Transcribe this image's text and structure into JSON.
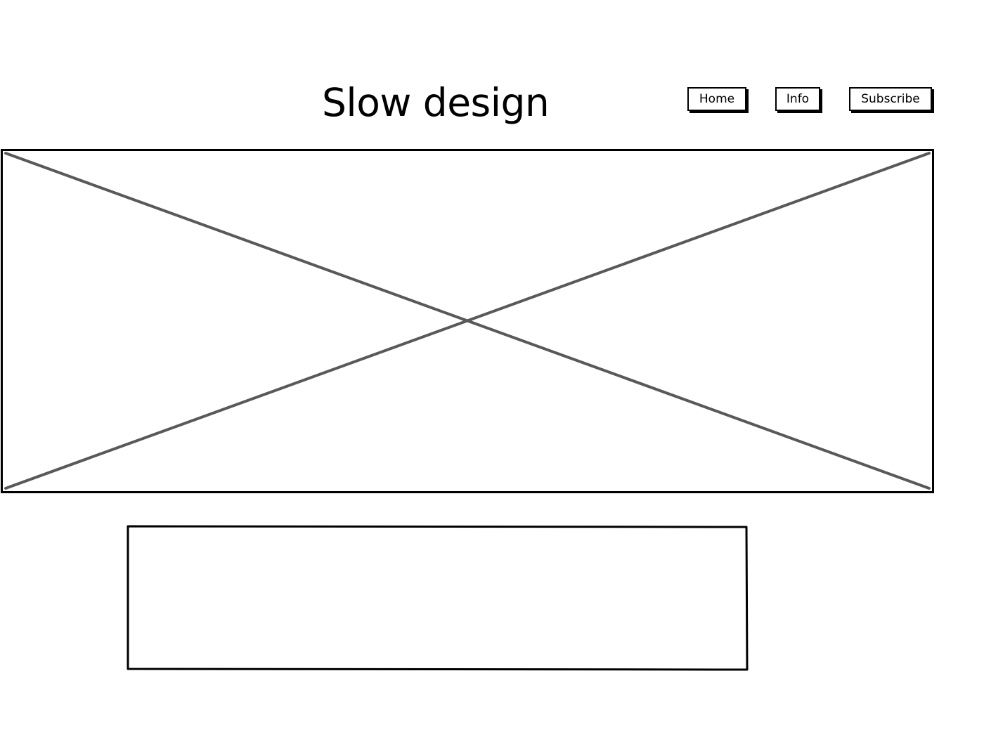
{
  "header": {
    "title": "Slow design"
  },
  "nav": {
    "items": [
      {
        "label": "Home"
      },
      {
        "label": "Info"
      },
      {
        "label": "Subscribe"
      }
    ]
  },
  "hero": {
    "icon": "image-placeholder-icon"
  },
  "colors": {
    "border": "#000000",
    "placeholder_cross": "#595959",
    "background": "#ffffff"
  }
}
